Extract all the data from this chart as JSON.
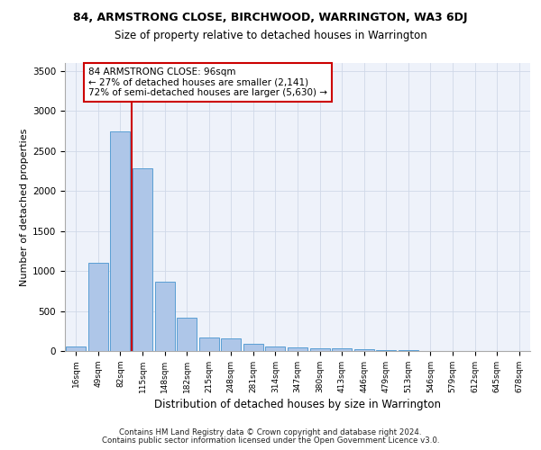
{
  "title1": "84, ARMSTRONG CLOSE, BIRCHWOOD, WARRINGTON, WA3 6DJ",
  "title2": "Size of property relative to detached houses in Warrington",
  "xlabel": "Distribution of detached houses by size in Warrington",
  "ylabel": "Number of detached properties",
  "categories": [
    "16sqm",
    "49sqm",
    "82sqm",
    "115sqm",
    "148sqm",
    "182sqm",
    "215sqm",
    "248sqm",
    "281sqm",
    "314sqm",
    "347sqm",
    "380sqm",
    "413sqm",
    "446sqm",
    "479sqm",
    "513sqm",
    "546sqm",
    "579sqm",
    "612sqm",
    "645sqm",
    "678sqm"
  ],
  "values": [
    55,
    1100,
    2740,
    2280,
    870,
    415,
    170,
    160,
    90,
    55,
    50,
    35,
    35,
    20,
    10,
    10,
    5,
    5,
    5,
    5,
    5
  ],
  "bar_color": "#aec6e8",
  "bar_edge_color": "#5a9fd4",
  "vline_color": "#cc0000",
  "annotation_text": "84 ARMSTRONG CLOSE: 96sqm\n← 27% of detached houses are smaller (2,141)\n72% of semi-detached houses are larger (5,630) →",
  "annotation_box_color": "#ffffff",
  "annotation_box_edge": "#cc0000",
  "footer1": "Contains HM Land Registry data © Crown copyright and database right 2024.",
  "footer2": "Contains public sector information licensed under the Open Government Licence v3.0.",
  "bg_color": "#eef2fa",
  "grid_color": "#d0d8e8",
  "ylim": [
    0,
    3600
  ],
  "yticks": [
    0,
    500,
    1000,
    1500,
    2000,
    2500,
    3000,
    3500
  ],
  "vline_pos": 2.5
}
